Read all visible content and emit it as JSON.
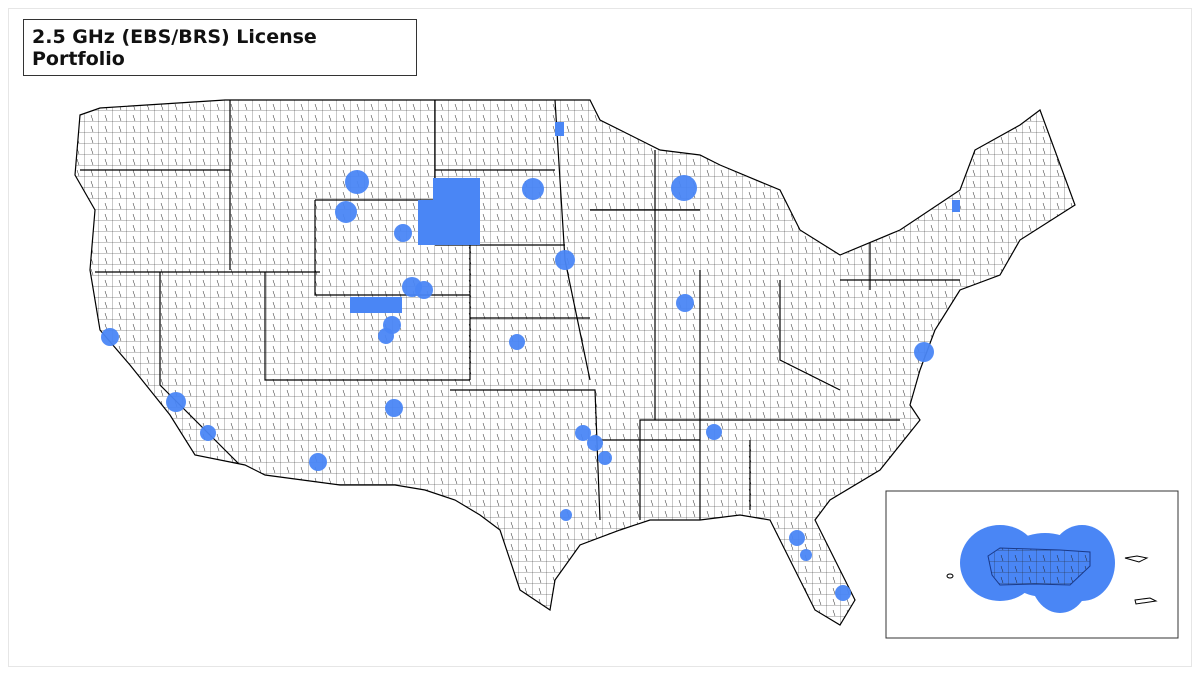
{
  "title": "2.5 GHz (EBS/BRS) License Portfolio",
  "map": {
    "region": "Contiguous United States (county boundaries)",
    "inset_region": "Puerto Rico and U.S. Virgin Islands",
    "license_color": "#4a86f5",
    "border_color": "#000000",
    "background": "#ffffff"
  }
}
